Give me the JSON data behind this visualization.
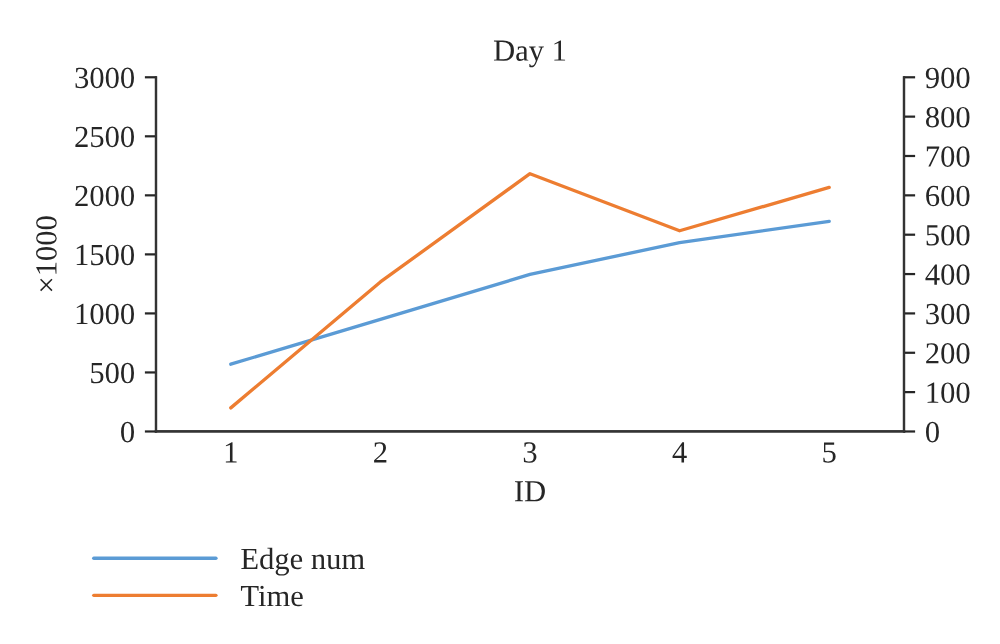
{
  "chart_data": {
    "type": "line",
    "title": "Day 1",
    "xlabel": "ID",
    "ylabel": "×1000",
    "categories": [
      "1",
      "2",
      "3",
      "4",
      "5"
    ],
    "series": [
      {
        "name": "Edge num",
        "color": "#5b9bd5",
        "values": [
          570,
          950,
          1330,
          1600,
          1780
        ]
      },
      {
        "name": "Time",
        "color": "#ed7d31",
        "values": [
          60,
          380,
          655,
          510,
          620
        ],
        "axis": "y2"
      }
    ],
    "ylim": [
      0,
      3000
    ],
    "yticks": [
      0,
      500,
      1000,
      1500,
      2000,
      2500,
      3000
    ],
    "y2lim": [
      0,
      900
    ],
    "y2ticks": [
      0,
      100,
      200,
      300,
      400,
      500,
      600,
      700,
      800,
      900
    ],
    "grid": false,
    "legend": "bottom left",
    "marker": "none",
    "line_style": "solid"
  }
}
